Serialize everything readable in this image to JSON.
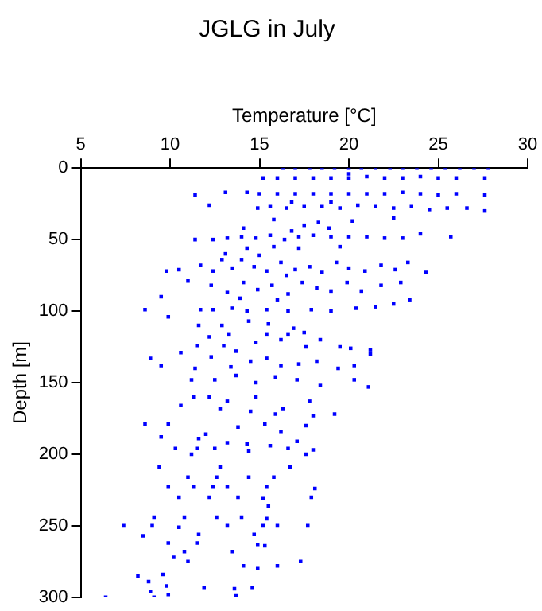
{
  "chart_data": {
    "type": "scatter",
    "title": "JGLG in July",
    "xlabel": "Temperature [°C]",
    "ylabel": "Depth [m]",
    "xlim": [
      5,
      30
    ],
    "xticks": [
      5,
      10,
      15,
      20,
      25,
      30
    ],
    "ylim": [
      300,
      0
    ],
    "yticks": [
      0,
      50,
      100,
      150,
      200,
      250,
      300
    ],
    "grid": false,
    "legend": false,
    "marker": "square",
    "series": [
      {
        "color": "#0000ff",
        "x": [
          16.3,
          17,
          17.8,
          18.5,
          19.2,
          20,
          20.7,
          21.5,
          22.3,
          23,
          23.8,
          24.6,
          25.4,
          26.2,
          27,
          27.8,
          15.2,
          16,
          17,
          18,
          19,
          20,
          21,
          22,
          23,
          24,
          25,
          26,
          27.6,
          20,
          11.4,
          13.1,
          14.3,
          15,
          16,
          17,
          18,
          19,
          20,
          21,
          22,
          23,
          24,
          25,
          26,
          27.6,
          12.2,
          14.9,
          15.6,
          16.5,
          17.5,
          18.5,
          19.5,
          20.5,
          21.5,
          22.5,
          23.5,
          24.5,
          25.5,
          26.6,
          27.6,
          16.8,
          19,
          15.8,
          17.5,
          18.3,
          20.2,
          22.5,
          14.1,
          16.8,
          18.9,
          11.4,
          12.4,
          13.2,
          14,
          14.8,
          15.6,
          16.4,
          17.2,
          18,
          19,
          20,
          21,
          22,
          23,
          24,
          25.7,
          14.3,
          15.8,
          17.2,
          19.5,
          13.1,
          15,
          9.8,
          10.5,
          11.7,
          12.4,
          13.5,
          14,
          14.7,
          15.4,
          16.2,
          17,
          17.8,
          18.5,
          19.3,
          20,
          20.9,
          21.8,
          22.6,
          23.3,
          24.3,
          12.9,
          16.5,
          9.5,
          11,
          12.3,
          13.2,
          14.1,
          14.9,
          15.7,
          16.6,
          17.4,
          18.2,
          19,
          19.9,
          20.7,
          21.8,
          22.9,
          13.9,
          16,
          8.6,
          9.9,
          11.7,
          12.4,
          13.5,
          14.3,
          15.4,
          16.6,
          17.9,
          19,
          20.4,
          21.5,
          22.5,
          23.4,
          11.6,
          12.9,
          14.4,
          15.5,
          12.2,
          13.3,
          15.4,
          16.6,
          17.5,
          18.4,
          11.5,
          13,
          14.8,
          16.2,
          17.6,
          19.5,
          20.1,
          21.2,
          16.9,
          13.7,
          8.9,
          9.5,
          10.6,
          11.4,
          12.3,
          13.4,
          14.5,
          15.4,
          16.2,
          17.2,
          18.2,
          19.4,
          20.3,
          21.2,
          11.2,
          12.5,
          13.7,
          14.8,
          15.9,
          17.1,
          18.4,
          20.3,
          21.1,
          11.3,
          12.2,
          13.2,
          14.8,
          16.3,
          17.8,
          19.2,
          10.6,
          12.8,
          14.5,
          15.9,
          18,
          8.6,
          9.9,
          12,
          13.8,
          15.3,
          16.2,
          17.6,
          9.5,
          11.6,
          13.2,
          14.3,
          17.1,
          10.3,
          11.5,
          12.5,
          15.6,
          16.6,
          18,
          11.2,
          14.4,
          17.6,
          9.4,
          12.8,
          16.7,
          11,
          12.6,
          14.4,
          15.8,
          9.9,
          11.3,
          12.4,
          13.2,
          15.4,
          18.1,
          10.5,
          12.2,
          13.8,
          15.2,
          17.9,
          15.5,
          9.1,
          10.8,
          12.6,
          14,
          15.4,
          7.4,
          9,
          10.5,
          13.2,
          15.2,
          16,
          17.7,
          8.5,
          11.6,
          14.7,
          9.9,
          11.5,
          14.9,
          10.8,
          13.5,
          15.3,
          17.3,
          10.2,
          11,
          14.1,
          14.9,
          16,
          8.2,
          9.6,
          8.8,
          9.8,
          11.9,
          13.6,
          14.6,
          8.9,
          9.9,
          6.4,
          13.7,
          9.1
        ],
        "values": [
          0,
          0,
          0,
          0,
          0,
          0,
          0,
          0,
          0,
          0,
          0,
          0,
          0,
          0,
          0,
          0,
          7,
          7,
          7,
          7,
          7,
          7,
          6,
          7,
          7,
          6,
          7,
          7,
          7,
          4,
          19,
          17,
          17,
          18,
          18,
          18,
          18,
          18,
          18,
          18,
          18,
          17,
          18,
          19,
          18,
          19,
          26,
          28,
          27,
          28,
          27,
          27,
          28,
          26,
          27,
          28,
          27,
          29,
          28,
          28,
          30,
          24,
          24,
          36,
          40,
          38,
          37,
          35,
          42,
          44,
          42,
          50,
          50,
          49,
          48,
          49,
          47,
          50,
          48,
          47,
          48,
          48,
          48,
          49,
          49,
          46,
          48,
          56,
          55,
          56,
          55,
          60,
          61,
          72,
          71,
          68,
          72,
          70,
          64,
          69,
          72,
          66,
          71,
          69,
          73,
          66,
          70,
          72,
          68,
          71,
          66,
          73,
          64,
          75,
          90,
          79,
          82,
          87,
          80,
          85,
          82,
          88,
          80,
          84,
          86,
          80,
          86,
          82,
          80,
          91,
          92,
          99,
          104,
          99,
          99,
          98,
          100,
          99,
          100,
          99,
          100,
          98,
          97,
          95,
          92,
          110,
          110,
          107,
          109,
          118,
          116,
          116,
          116,
          115,
          120,
          124,
          124,
          122,
          120,
          125,
          125,
          126,
          127,
          112,
          128,
          133,
          138,
          129,
          140,
          132,
          139,
          135,
          133,
          138,
          137,
          135,
          140,
          138,
          130,
          148,
          148,
          145,
          150,
          146,
          148,
          152,
          148,
          153,
          160,
          160,
          163,
          160,
          168,
          163,
          172,
          166,
          168,
          170,
          172,
          173,
          179,
          179,
          186,
          181,
          179,
          184,
          180,
          188,
          189,
          192,
          193,
          191,
          196,
          196,
          196,
          194,
          196,
          197,
          200,
          198,
          200,
          209,
          209,
          209,
          216,
          216,
          216,
          216,
          223,
          223,
          223,
          223,
          223,
          224,
          230,
          230,
          230,
          231,
          230,
          236,
          244,
          244,
          244,
          244,
          245,
          250,
          250,
          251,
          250,
          250,
          250,
          250,
          257,
          256,
          256,
          262,
          262,
          263,
          268,
          268,
          264,
          275,
          272,
          275,
          278,
          280,
          278,
          285,
          284,
          289,
          292,
          293,
          294,
          293,
          296,
          298,
          300,
          299,
          300
        ]
      }
    ]
  }
}
